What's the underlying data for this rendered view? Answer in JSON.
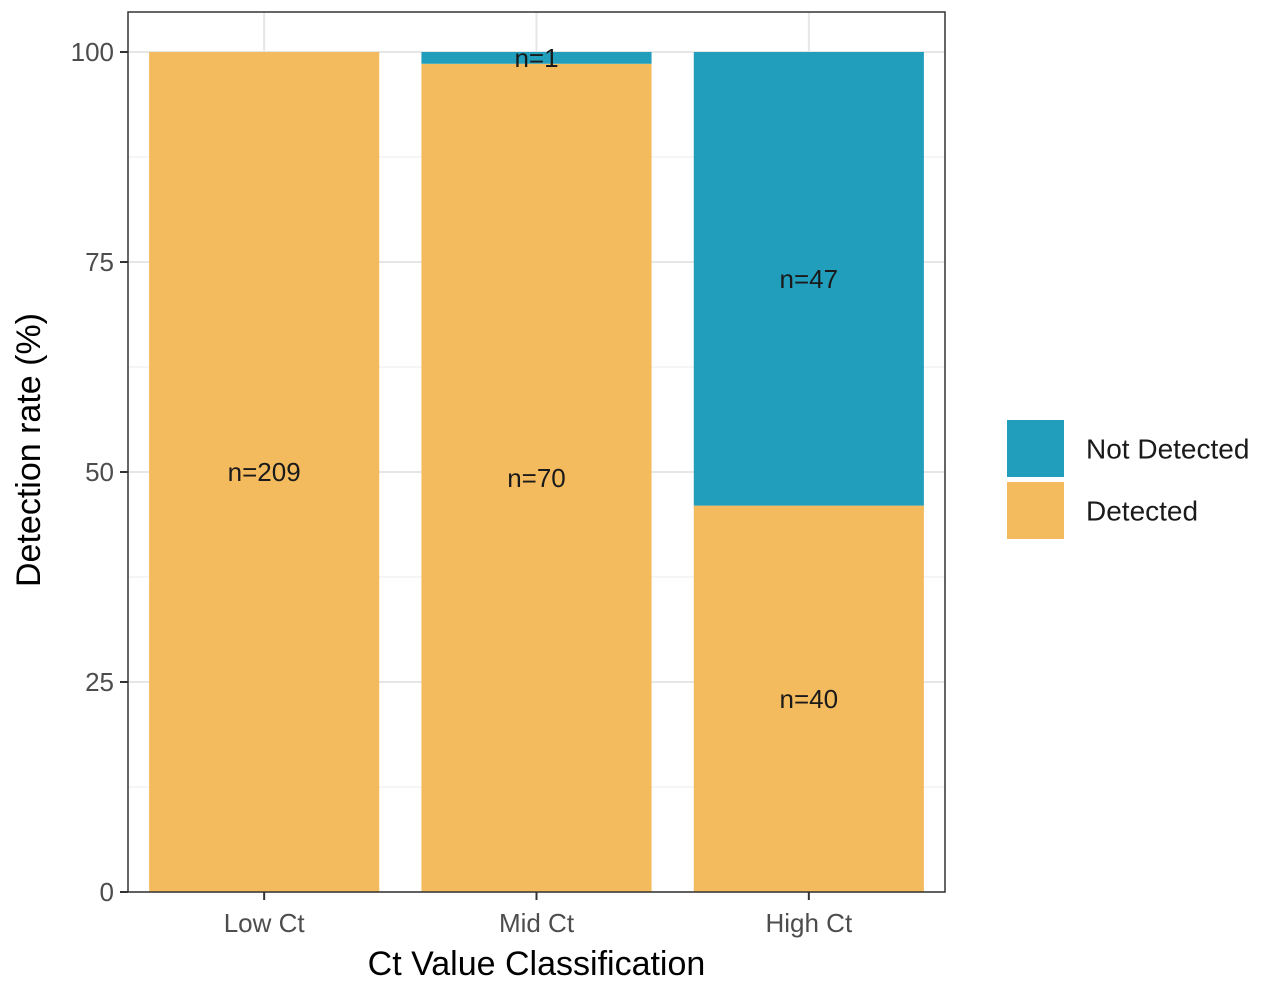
{
  "chart_data": {
    "type": "bar",
    "stacked": true,
    "title": "",
    "xlabel": "Ct Value Classification",
    "ylabel": "Detection rate (%)",
    "ylim": [
      0,
      100
    ],
    "yticks": [
      0,
      25,
      50,
      75,
      100
    ],
    "categories": [
      "Low Ct",
      "Mid Ct",
      "High Ct"
    ],
    "series": [
      {
        "name": "Detected",
        "color": "#F3BB5E",
        "values": [
          100,
          98.6,
          46.0
        ],
        "labels": [
          "n=209",
          "n=70",
          "n=40"
        ]
      },
      {
        "name": "Not Detected",
        "color": "#219EBC",
        "values": [
          0,
          1.4,
          54.0
        ],
        "labels": [
          "",
          "n=1",
          "n=47"
        ]
      }
    ],
    "legend": {
      "position": "right",
      "items": [
        {
          "name": "Not Detected",
          "color": "#219EBC"
        },
        {
          "name": "Detected",
          "color": "#F3BB5E"
        }
      ]
    },
    "grid": true
  }
}
